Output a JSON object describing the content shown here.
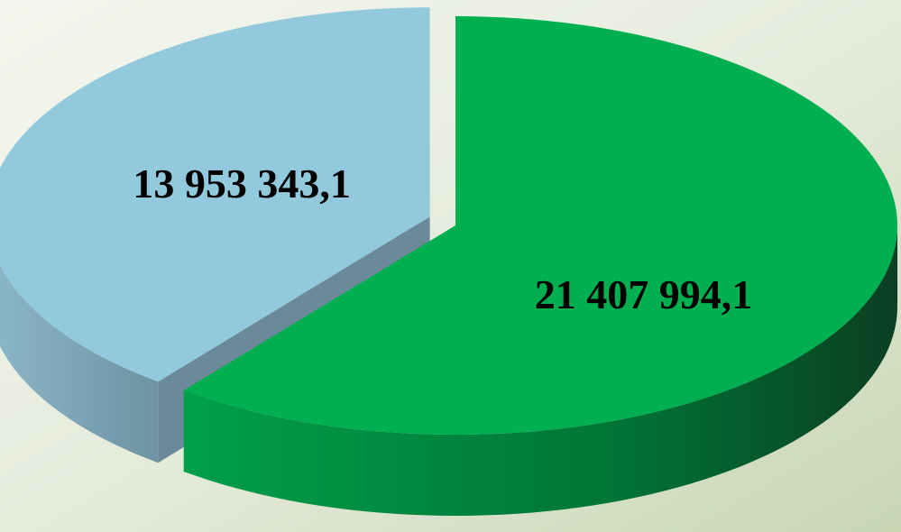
{
  "chart_data": {
    "type": "pie",
    "categories": [
      null,
      null
    ],
    "values": [
      13953343.1,
      21407994.1
    ],
    "value_labels": [
      "13 953 343,1",
      "21 407 994,1"
    ],
    "colors": [
      "#92c9dc",
      "#00b050"
    ]
  }
}
